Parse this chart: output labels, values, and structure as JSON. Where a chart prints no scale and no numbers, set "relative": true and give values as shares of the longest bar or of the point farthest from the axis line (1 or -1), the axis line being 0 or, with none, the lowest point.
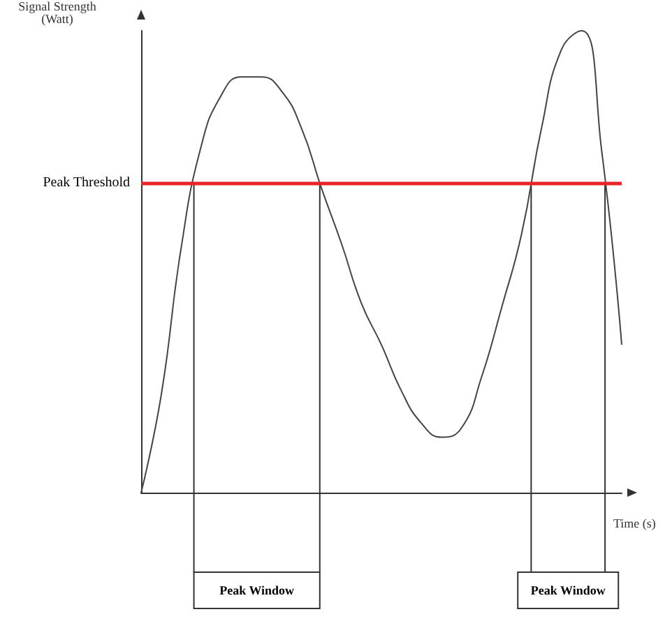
{
  "chart_data": {
    "type": "line",
    "relative": true,
    "xlabel": "Time (s)",
    "ylabel": "Signal Strength\n(Watt)",
    "categories": [
      null,
      null,
      null,
      null,
      null,
      null,
      null,
      null,
      null,
      null,
      null,
      null,
      null,
      null,
      null,
      null,
      null,
      null,
      null,
      null,
      null,
      null,
      null,
      null,
      null
    ],
    "series": [
      {
        "color": "#444444",
        "values": [
          0,
          0.21,
          0.53,
          0.75,
          0.86,
          0.9,
          0.9,
          0.87,
          0.79,
          0.66,
          0.54,
          0.41,
          0.32,
          0.22,
          0.15,
          0.12,
          0.14,
          0.25,
          0.4,
          0.56,
          0.79,
          0.96,
          1,
          0.74,
          0.32
        ]
      }
    ],
    "ref_lines": [
      {
        "axis": "y",
        "value": 0.67,
        "label": "Peak Threshold",
        "color": "#e8262a"
      }
    ],
    "annotations": [
      "Peak Window",
      "Peak Window"
    ],
    "marker": "none",
    "grid": false
  }
}
